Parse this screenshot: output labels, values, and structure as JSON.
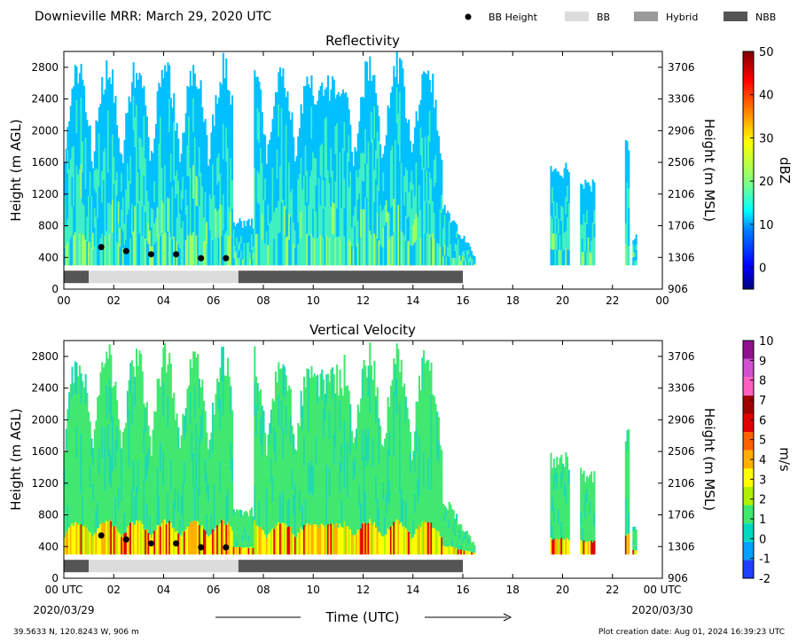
{
  "header": {
    "title": "Downieville MRR:  March 29, 2020 UTC",
    "legend": [
      {
        "label": "BB Height",
        "kind": "dot",
        "color": "#000000"
      },
      {
        "label": "BB",
        "kind": "box",
        "color": "#dcdcdc"
      },
      {
        "label": "Hybrid",
        "kind": "box",
        "color": "#9a9a9a"
      },
      {
        "label": "NBB",
        "kind": "box",
        "color": "#555555"
      }
    ]
  },
  "chart_data": [
    {
      "type": "heatmap",
      "title": "Reflectivity",
      "ylabel": "Height (m AGL)",
      "ylabel_right": "Height (m MSL)",
      "xlim": [
        0,
        24
      ],
      "ylim": [
        0,
        3000
      ],
      "x_ticks": [
        "00",
        "02",
        "04",
        "06",
        "08",
        "10",
        "12",
        "14",
        "16",
        "18",
        "20",
        "22",
        "00"
      ],
      "y_ticks": [
        "0",
        "400",
        "800",
        "1200",
        "1600",
        "2000",
        "2400",
        "2800"
      ],
      "y_ticks_right": [
        "906",
        "1306",
        "1706",
        "2106",
        "2506",
        "2906",
        "3306",
        "3706"
      ],
      "colorbar": {
        "label": "dBZ",
        "range": [
          -5,
          50
        ],
        "ticks": [
          "0",
          "10",
          "20",
          "30",
          "40",
          "50"
        ],
        "colors": [
          "#00007f",
          "#0000ff",
          "#0080ff",
          "#00ffff",
          "#80ff80",
          "#ffff00",
          "#ff8000",
          "#ff0000",
          "#7f0000"
        ]
      },
      "bb_height": [
        {
          "x": 1.5,
          "y": 530
        },
        {
          "x": 2.5,
          "y": 480
        },
        {
          "x": 3.5,
          "y": 440
        },
        {
          "x": 4.5,
          "y": 440
        },
        {
          "x": 5.5,
          "y": 390
        },
        {
          "x": 6.5,
          "y": 390
        }
      ],
      "bb_bar": [
        {
          "from": 0,
          "to": 1,
          "class": "NBB"
        },
        {
          "from": 1,
          "to": 7,
          "class": "BB"
        },
        {
          "from": 7,
          "to": 16,
          "class": "NBB"
        }
      ]
    },
    {
      "type": "heatmap",
      "title": "Vertical Velocity",
      "ylabel": "Height (m AGL)",
      "ylabel_right": "Height (m MSL)",
      "xlabel": "Time (UTC)",
      "xlim": [
        0,
        24
      ],
      "ylim": [
        0,
        3000
      ],
      "x_ticks": [
        "00 UTC",
        "02",
        "04",
        "06",
        "08",
        "10",
        "12",
        "14",
        "16",
        "18",
        "20",
        "22",
        "00 UTC"
      ],
      "x_date_left": "2020/03/29",
      "x_date_right": "2020/03/30",
      "y_ticks": [
        "0",
        "400",
        "800",
        "1200",
        "1600",
        "2000",
        "2400",
        "2800"
      ],
      "y_ticks_right": [
        "906",
        "1306",
        "1706",
        "2106",
        "2506",
        "2906",
        "3306",
        "3706"
      ],
      "colorbar": {
        "label": "m/s",
        "range": [
          -2,
          10
        ],
        "ticks": [
          "-2",
          "-1",
          "0",
          "1",
          "2",
          "3",
          "4",
          "5",
          "6",
          "7",
          "8",
          "9",
          "10"
        ],
        "colors": [
          "#1f3fff",
          "#00a0ff",
          "#00d8c0",
          "#40e870",
          "#b0f000",
          "#ffff00",
          "#ffb000",
          "#ff6000",
          "#e00000",
          "#a00000",
          "#ff60c0",
          "#d050d0",
          "#901090"
        ]
      },
      "bb_height": [
        {
          "x": 1.5,
          "y": 540
        },
        {
          "x": 2.5,
          "y": 490
        },
        {
          "x": 3.5,
          "y": 440
        },
        {
          "x": 4.5,
          "y": 440
        },
        {
          "x": 5.5,
          "y": 390
        },
        {
          "x": 6.5,
          "y": 390
        }
      ],
      "bb_bar": [
        {
          "from": 0,
          "to": 1,
          "class": "NBB"
        },
        {
          "from": 1,
          "to": 7,
          "class": "BB"
        },
        {
          "from": 7,
          "to": 16,
          "class": "NBB"
        }
      ]
    }
  ],
  "footer": {
    "location": "39.5633 N, 120.8243 W, 906 m",
    "created": "Plot creation date: Aug 01, 2024 16:39:23 UTC"
  }
}
